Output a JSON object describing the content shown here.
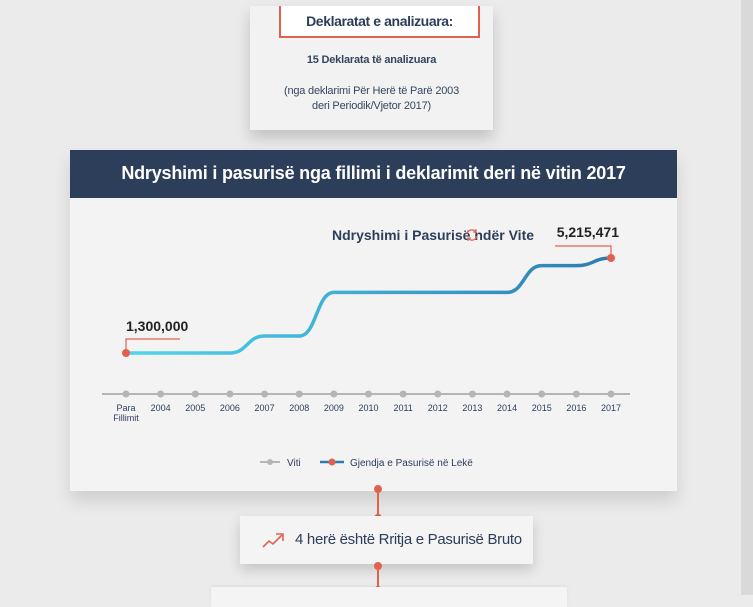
{
  "summary": {
    "tab_label": "Deklaratat e analizuara:",
    "count_text": "15 Deklarata të analizuara",
    "note_line1": "(nga deklarimi Për Herë të Parë 2003",
    "note_line2": "deri Periodik/Vjetor 2017)"
  },
  "chart_header": "Ndryshimi i pasurisë nga fillimi i deklarimit deri në vitin 2017",
  "chart_data": {
    "type": "line",
    "title": "Ndryshimi i Pasurisë ndër Vite",
    "categories": [
      "Para Fillimit",
      "2004",
      "2005",
      "2006",
      "2007",
      "2008",
      "2009",
      "2010",
      "2011",
      "2012",
      "2013",
      "2014",
      "2015",
      "2016",
      "2017"
    ],
    "series": [
      {
        "name": "Gjendja e Pasurisë në Lekë",
        "values": [
          1300000,
          1300000,
          1300000,
          1300000,
          2000000,
          2000000,
          3800000,
          3800000,
          3800000,
          3800000,
          3800000,
          3800000,
          4900000,
          4900000,
          5215471
        ]
      }
    ],
    "axis_series_name": "Viti",
    "annotations": [
      {
        "category": "Para Fillimit",
        "label": "1,300,000"
      },
      {
        "category": "2017",
        "label": "5,215,471"
      }
    ],
    "grid": false,
    "legend_position": "bottom",
    "colors": {
      "start": "#4fd6ee",
      "end": "#2c7cb3",
      "axis": "#b5b5b5",
      "marker": "#e2614e"
    }
  },
  "growth": {
    "icon": "trend-up-icon",
    "label": "4 herë është Rritja e Pasurisë Bruto"
  },
  "colors": {
    "navy": "#2c3e5a",
    "accent": "#e2614e"
  }
}
